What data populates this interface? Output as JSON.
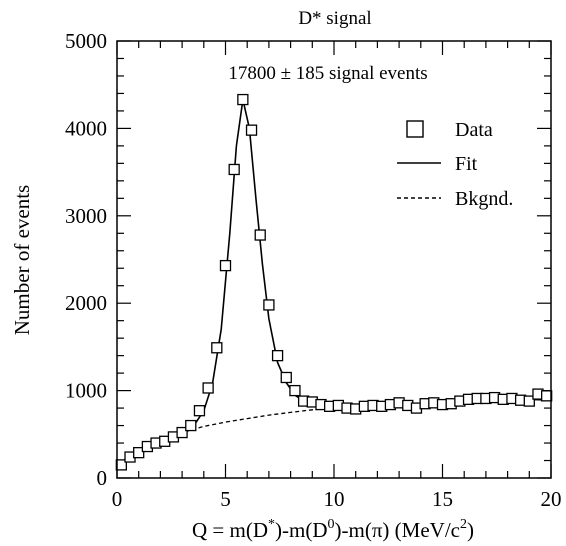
{
  "chart_data": {
    "type": "scatter",
    "title": "D* signal",
    "annotation": "17800 ± 185 signal events",
    "xlabel": "Q = m(D*)-m(D0)-m(π) (MeV/c2)",
    "xlabel_parts": {
      "lead": "Q = m(D",
      "sup1": "*",
      "mid1": ")-m(D",
      "sup2": "0",
      "mid2": ")-m(π) (MeV/c",
      "sup3": "2",
      "tail": ")"
    },
    "ylabel": "Number of events",
    "xlim": [
      0,
      20
    ],
    "ylim": [
      0,
      5000
    ],
    "xticks": [
      0,
      5,
      10,
      15,
      20
    ],
    "yticks": [
      0,
      1000,
      2000,
      3000,
      4000,
      5000
    ],
    "legend_position": "top-right",
    "legend": [
      {
        "label": "Data",
        "style": "open-square"
      },
      {
        "label": "Fit",
        "style": "solid-line"
      },
      {
        "label": "Bkgnd.",
        "style": "dashed-line"
      }
    ],
    "series": [
      {
        "name": "Data",
        "kind": "markers",
        "marker": "open-square",
        "x": [
          0.2,
          0.6,
          1.0,
          1.4,
          1.8,
          2.2,
          2.6,
          3.0,
          3.4,
          3.8,
          4.2,
          4.6,
          5.0,
          5.4,
          5.8,
          6.2,
          6.6,
          7.0,
          7.4,
          7.8,
          8.2,
          8.6,
          9.0,
          9.4,
          9.8,
          10.2,
          10.6,
          11.0,
          11.4,
          11.8,
          12.2,
          12.6,
          13.0,
          13.4,
          13.8,
          14.2,
          14.6,
          15.0,
          15.4,
          15.8,
          16.2,
          16.6,
          17.0,
          17.4,
          17.8,
          18.2,
          18.6,
          19.0,
          19.4,
          19.8
        ],
        "y": [
          150,
          240,
          290,
          360,
          400,
          420,
          470,
          520,
          600,
          770,
          1030,
          1490,
          2430,
          3530,
          4330,
          3980,
          2780,
          1980,
          1400,
          1150,
          1000,
          880,
          870,
          840,
          820,
          830,
          800,
          790,
          820,
          830,
          820,
          840,
          860,
          830,
          800,
          850,
          860,
          840,
          850,
          880,
          900,
          910,
          910,
          920,
          900,
          910,
          890,
          880,
          960,
          940
        ]
      },
      {
        "name": "Fit",
        "kind": "line",
        "dash": "solid",
        "x": [
          0.0,
          0.6,
          1.2,
          1.8,
          2.4,
          3.0,
          3.6,
          4.0,
          4.4,
          4.8,
          5.2,
          5.5,
          5.8,
          6.1,
          6.4,
          6.7,
          7.0,
          7.4,
          7.8,
          8.2,
          8.6,
          9.0,
          9.5,
          10.0,
          11.0,
          12.0,
          13.0,
          14.0,
          15.0,
          16.0,
          17.0,
          18.0,
          19.0,
          20.0
        ],
        "y": [
          140,
          260,
          330,
          390,
          450,
          520,
          620,
          770,
          1080,
          1700,
          2800,
          3800,
          4330,
          4000,
          3200,
          2450,
          1820,
          1320,
          1090,
          950,
          880,
          850,
          830,
          820,
          810,
          820,
          840,
          850,
          870,
          900,
          910,
          920,
          900,
          890
        ]
      },
      {
        "name": "Bkgnd.",
        "kind": "line",
        "dash": "dashed",
        "x": [
          0.0,
          1.0,
          2.0,
          3.0,
          4.0,
          5.0,
          6.0,
          7.0,
          8.0,
          9.0,
          10.0,
          11.0,
          12.0,
          13.0,
          14.0,
          15.0,
          16.0,
          17.0,
          18.0,
          19.0,
          20.0
        ],
        "y": [
          140,
          330,
          440,
          520,
          590,
          640,
          680,
          720,
          750,
          780,
          800,
          810,
          820,
          840,
          850,
          870,
          900,
          910,
          920,
          900,
          890
        ]
      }
    ]
  }
}
